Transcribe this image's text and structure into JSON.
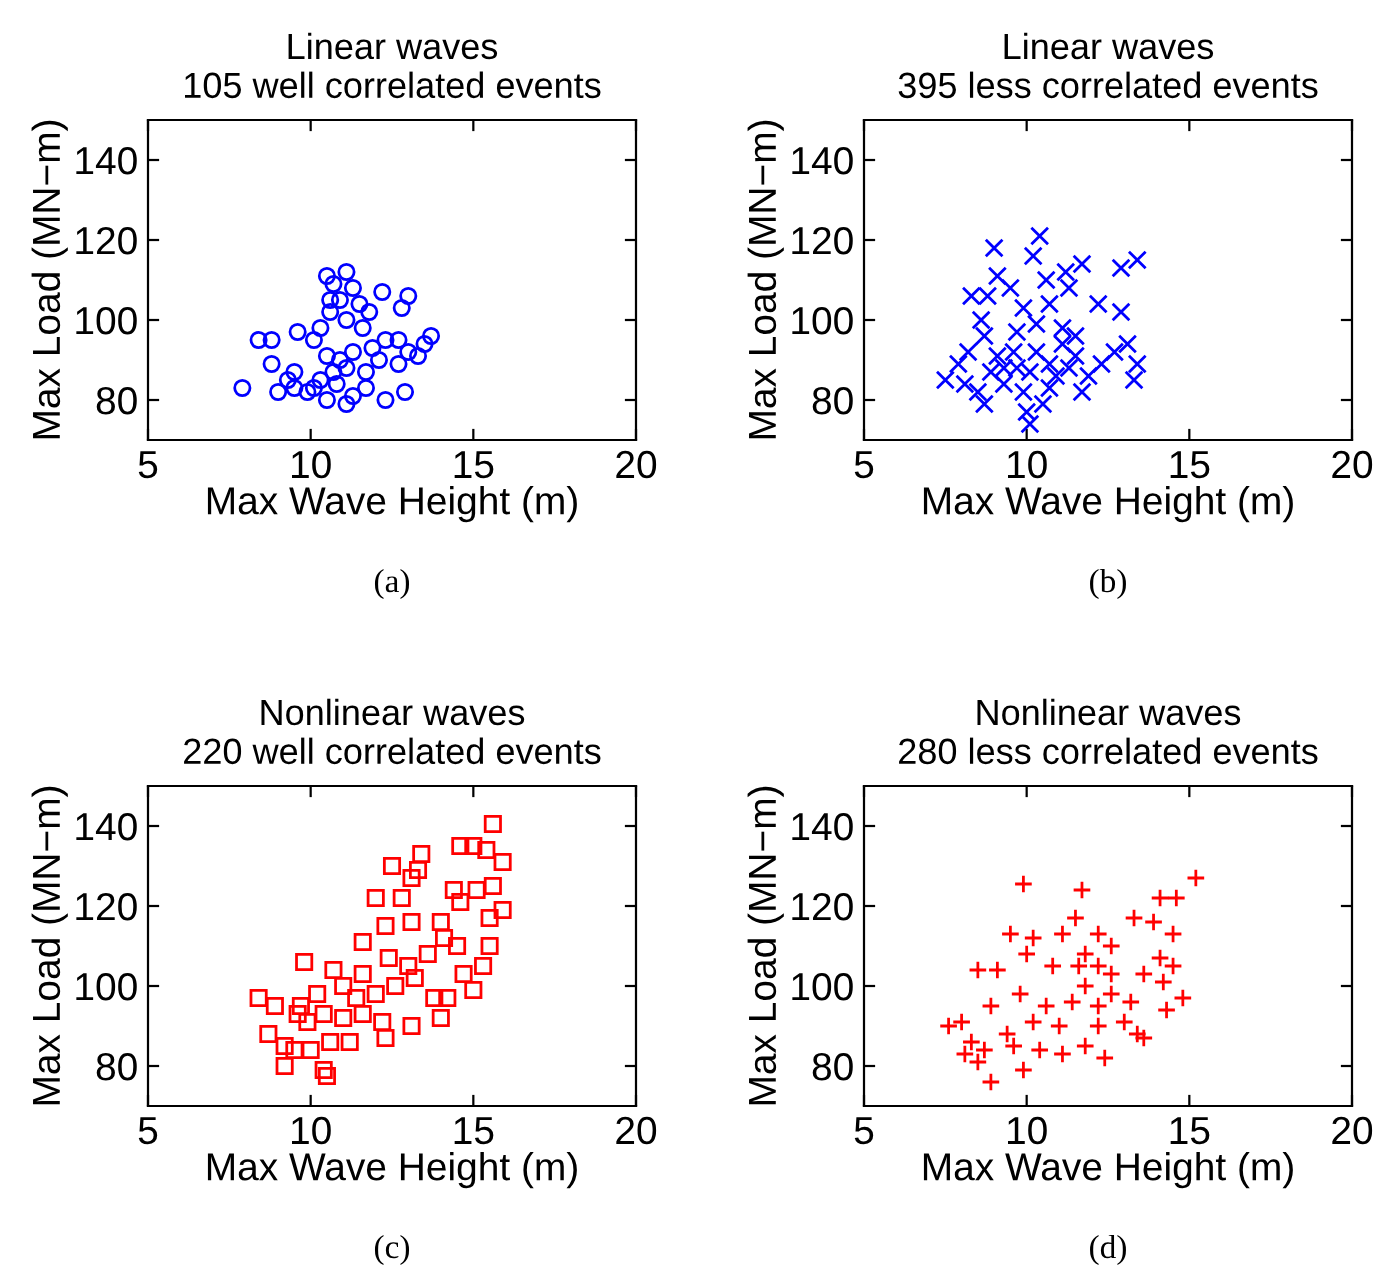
{
  "chart_data": [
    {
      "type": "scatter",
      "title": "Linear waves",
      "subtitle": "105 well correlated events",
      "xlabel": "Max Wave Height (m)",
      "ylabel": "Max Load (MN−m)",
      "xlim": [
        5,
        20
      ],
      "ylim": [
        70,
        150
      ],
      "xticks": [
        5,
        10,
        15,
        20
      ],
      "yticks": [
        80,
        100,
        120,
        140
      ],
      "marker": "circle",
      "grid": false,
      "annotations": [
        "(a)"
      ],
      "series": [
        {
          "color": "#0000ff",
          "x": [
            7.9,
            8.4,
            8.8,
            8.8,
            9.0,
            9.6,
            9.5,
            9.9,
            10.1,
            10.5,
            11.1,
            10.7,
            11.3,
            10.6,
            10.9,
            11.5,
            12.2,
            13.0,
            12.8,
            10.6,
            11.1,
            11.8,
            10.5,
            10.9,
            11.3,
            10.7,
            11.1,
            10.3,
            11.7,
            10.5,
            11.1,
            11.3,
            12.3,
            12.9,
            12.3,
            12.7,
            13.0,
            13.3,
            13.7,
            13.5,
            11.9,
            12.1,
            10.1,
            9.5,
            11.7,
            12.7,
            10.8,
            11.6,
            10.3,
            9.3
          ],
          "values": [
            83,
            95,
            95,
            89,
            82,
            97,
            87,
            82,
            95,
            111,
            112,
            109,
            108,
            105,
            105,
            104,
            107,
            106,
            103,
            102,
            100,
            102,
            91,
            90,
            92,
            87,
            88,
            85,
            87,
            80,
            79,
            81,
            80,
            82,
            95,
            95,
            92,
            91,
            96,
            94,
            93,
            90,
            83,
            83,
            83,
            89,
            84,
            98,
            98,
            85
          ]
        }
      ]
    },
    {
      "type": "scatter",
      "title": "Linear waves",
      "subtitle": "395 less correlated events",
      "xlabel": "Max Wave Height (m)",
      "ylabel": "Max Load (MN−m)",
      "xlim": [
        5,
        20
      ],
      "ylim": [
        70,
        150
      ],
      "xticks": [
        5,
        10,
        15,
        20
      ],
      "yticks": [
        80,
        100,
        120,
        140
      ],
      "marker": "cross",
      "grid": false,
      "annotations": [
        "(b)"
      ],
      "series": [
        {
          "color": "#0000ff",
          "x": [
            10.4,
            9.0,
            10.2,
            13.4,
            12.9,
            11.7,
            11.2,
            9.1,
            10.6,
            8.3,
            8.8,
            9.5,
            11.3,
            12.2,
            12.9,
            8.6,
            9.9,
            10.7,
            7.5,
            7.9,
            8.2,
            8.7,
            9.1,
            9.7,
            10.3,
            10.7,
            11.1,
            11.5,
            11.9,
            12.3,
            12.7,
            13.1,
            13.3,
            13.4,
            8.5,
            9.3,
            9.9,
            10.7,
            11.7,
            10.0,
            8.7,
            10.5,
            9.7,
            10.3,
            11.1,
            11.5,
            9.3,
            10.1,
            10.9,
            11.3,
            9.6,
            8.9,
            8.1,
            10.1
          ],
          "values": [
            121,
            118,
            116,
            115,
            113,
            114,
            112,
            111,
            110,
            106,
            106,
            108,
            108,
            104,
            102,
            100,
            103,
            104,
            85,
            89,
            92,
            96,
            91,
            88,
            92,
            89,
            94,
            91,
            86,
            89,
            92,
            94,
            85,
            89,
            82,
            84,
            82,
            83,
            82,
            77,
            79,
            79,
            97,
            99,
            98,
            96,
            88,
            87,
            86,
            88,
            92,
            87,
            84,
            74
          ]
        }
      ]
    },
    {
      "type": "scatter",
      "title": "Nonlinear waves",
      "subtitle": "220 well correlated events",
      "xlabel": "Max Wave Height (m)",
      "ylabel": "Max Load (MN−m)",
      "xlim": [
        5,
        20
      ],
      "ylim": [
        70,
        150
      ],
      "xticks": [
        5,
        10,
        15,
        20
      ],
      "yticks": [
        80,
        100,
        120,
        140
      ],
      "marker": "square",
      "grid": false,
      "annotations": [
        "(c)"
      ],
      "series": [
        {
          "color": "#ff0000",
          "x": [
            15.6,
            14.6,
            15.0,
            15.4,
            15.9,
            13.4,
            12.5,
            13.1,
            13.3,
            12.0,
            12.8,
            14.4,
            15.1,
            15.6,
            14.6,
            15.5,
            15.9,
            13.1,
            14.0,
            12.3,
            11.6,
            15.5,
            15.3,
            14.7,
            15.0,
            9.8,
            10.7,
            8.4,
            8.9,
            9.6,
            10.2,
            11.0,
            11.6,
            12.4,
            13.0,
            13.6,
            14.1,
            14.5,
            11.4,
            12.0,
            12.6,
            13.2,
            13.8,
            14.2,
            14.0,
            10.4,
            11.0,
            11.6,
            12.2,
            13.1,
            8.7,
            9.2,
            9.5,
            10.0,
            9.2,
            10.4,
            10.5,
            10.6,
            11.2,
            12.3,
            9.9,
            9.7
          ],
          "values": [
            140.5,
            135,
            135,
            134,
            131,
            133,
            130,
            127,
            129,
            122,
            122,
            124,
            124,
            125,
            121,
            117,
            119,
            116,
            116,
            115,
            111,
            110,
            105,
            103,
            99,
            106,
            104,
            97,
            95,
            93,
            98,
            100,
            103,
            107,
            105,
            108,
            112,
            110,
            97,
            98,
            100,
            102,
            97,
            97,
            92,
            93,
            92,
            93,
            91,
            90,
            88,
            85,
            84,
            84,
            80,
            79,
            77.5,
            86,
            86,
            87,
            91,
            95
          ]
        }
      ]
    },
    {
      "type": "scatter",
      "title": "Nonlinear waves",
      "subtitle": "280 less correlated events",
      "xlabel": "Max Wave Height (m)",
      "ylabel": "Max Load (MN−m)",
      "xlim": [
        5,
        20
      ],
      "ylim": [
        70,
        150
      ],
      "xticks": [
        5,
        10,
        15,
        20
      ],
      "yticks": [
        80,
        100,
        120,
        140
      ],
      "marker": "plus",
      "grid": false,
      "annotations": [
        "(d)"
      ],
      "series": [
        {
          "color": "#ff0000",
          "x": [
            15.2,
            9.9,
            11.7,
            14.1,
            14.6,
            13.3,
            13.9,
            14.5,
            11.5,
            12.2,
            9.5,
            10.2,
            11.1,
            10.0,
            8.5,
            9.1,
            10.8,
            12.6,
            11.8,
            12.2,
            14.1,
            14.5,
            14.2,
            13.6,
            14.8,
            14.3,
            13.6,
            12.4,
            9.9,
            8.9,
            7.6,
            8.0,
            8.3,
            8.5,
            8.9,
            9.4,
            9.8,
            10.2,
            10.6,
            11.0,
            11.4,
            11.8,
            12.2,
            12.6,
            13.0,
            13.2,
            9.6,
            10.4,
            11.1,
            11.8,
            12.2,
            12.6,
            11.6,
            13.4,
            8.7,
            8.1
          ],
          "values": [
            127,
            125.5,
            124,
            122,
            122,
            117,
            116,
            113,
            117,
            113,
            113,
            112,
            113,
            108,
            104,
            104,
            105,
            110,
            108,
            105,
            107,
            105,
            101,
            103,
            97,
            94,
            87,
            82,
            79,
            76,
            90,
            91,
            86,
            81,
            95,
            88,
            98,
            91,
            95,
            90,
            96,
            100,
            95,
            103,
            91,
            96,
            85,
            84,
            83,
            85,
            90,
            98,
            105,
            88,
            84,
            83
          ]
        }
      ]
    }
  ]
}
